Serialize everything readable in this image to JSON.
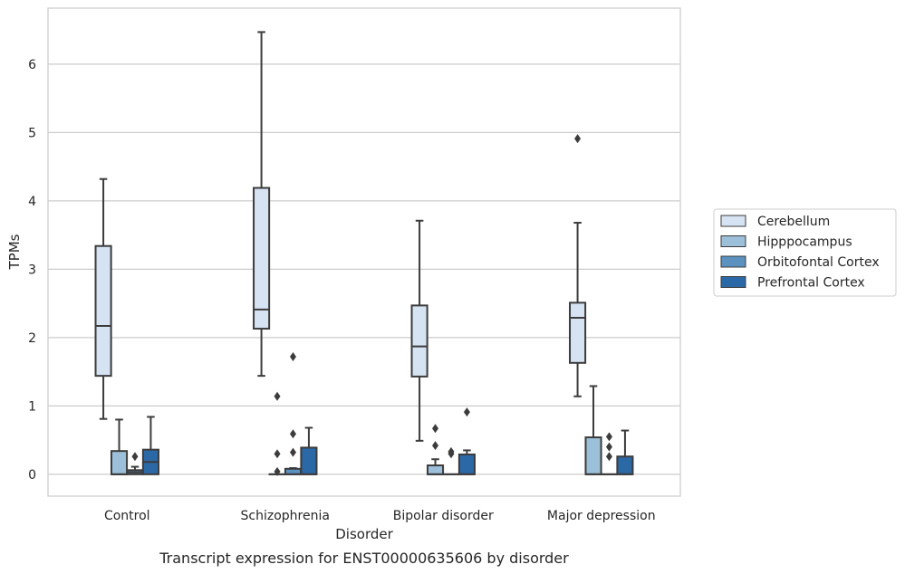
{
  "caption": "Transcript expression for ENST00000635606 by disorder",
  "colors": {
    "Cerebellum": "#d6e3f2",
    "Hipppocampus": "#9cc0d9",
    "Orbitofontal Cortex": "#5b92c0",
    "Prefrontal Cortex": "#2b68a6",
    "line": "#3c3c3c",
    "grid": "#cccccc",
    "frame": "#cccccc"
  },
  "chart_data": {
    "type": "box",
    "xlabel": "Disorder",
    "ylabel": "TPMs",
    "ylim": [
      -0.32,
      6.82
    ],
    "yticks": [
      0,
      1,
      2,
      3,
      4,
      5,
      6
    ],
    "grid": "horizontal",
    "legend_position": "right",
    "categories": [
      "Control",
      "Schizophrenia",
      "Bipolar disorder",
      "Major depression"
    ],
    "series": [
      {
        "name": "Cerebellum",
        "boxes": [
          {
            "min": 0.81,
            "q1": 1.44,
            "median": 2.17,
            "q3": 3.34,
            "max": 4.32,
            "outliers": []
          },
          {
            "min": 1.44,
            "q1": 2.13,
            "median": 2.41,
            "q3": 4.19,
            "max": 6.47,
            "outliers": []
          },
          {
            "min": 0.49,
            "q1": 1.43,
            "median": 1.87,
            "q3": 2.47,
            "max": 3.71,
            "outliers": []
          },
          {
            "min": 1.14,
            "q1": 1.63,
            "median": 2.29,
            "q3": 2.51,
            "max": 3.68,
            "outliers": [
              4.91
            ]
          }
        ]
      },
      {
        "name": "Hipppocampus",
        "boxes": [
          {
            "min": 0.0,
            "q1": 0.0,
            "median": 0.0,
            "q3": 0.34,
            "max": 0.8,
            "outliers": []
          },
          {
            "min": 0.0,
            "q1": 0.0,
            "median": 0.0,
            "q3": 0.0,
            "max": 0.0,
            "outliers": [
              0.04,
              0.3,
              1.14
            ]
          },
          {
            "min": 0.0,
            "q1": 0.0,
            "median": 0.0,
            "q3": 0.13,
            "max": 0.22,
            "outliers": [
              0.42,
              0.67
            ]
          },
          {
            "min": 0.0,
            "q1": 0.0,
            "median": 0.0,
            "q3": 0.54,
            "max": 1.29,
            "outliers": []
          }
        ]
      },
      {
        "name": "Orbitofontal Cortex",
        "boxes": [
          {
            "min": 0.0,
            "q1": 0.0,
            "median": 0.03,
            "q3": 0.06,
            "max": 0.11,
            "outliers": [
              0.26
            ]
          },
          {
            "min": 0.0,
            "q1": 0.0,
            "median": 0.0,
            "q3": 0.08,
            "max": 0.09,
            "outliers": [
              0.32,
              0.59,
              1.72
            ]
          },
          {
            "min": 0.0,
            "q1": 0.0,
            "median": 0.0,
            "q3": 0.0,
            "max": 0.0,
            "outliers": [
              0.3,
              0.33
            ]
          },
          {
            "min": 0.0,
            "q1": 0.0,
            "median": 0.0,
            "q3": 0.0,
            "max": 0.0,
            "outliers": [
              0.26,
              0.4,
              0.55
            ]
          }
        ]
      },
      {
        "name": "Prefrontal Cortex",
        "boxes": [
          {
            "min": 0.0,
            "q1": 0.0,
            "median": 0.18,
            "q3": 0.36,
            "max": 0.84,
            "outliers": []
          },
          {
            "min": 0.0,
            "q1": 0.0,
            "median": 0.0,
            "q3": 0.39,
            "max": 0.68,
            "outliers": []
          },
          {
            "min": 0.0,
            "q1": 0.0,
            "median": 0.0,
            "q3": 0.29,
            "max": 0.35,
            "outliers": [
              0.91
            ]
          },
          {
            "min": 0.0,
            "q1": 0.0,
            "median": 0.0,
            "q3": 0.26,
            "max": 0.64,
            "outliers": []
          }
        ]
      }
    ]
  }
}
